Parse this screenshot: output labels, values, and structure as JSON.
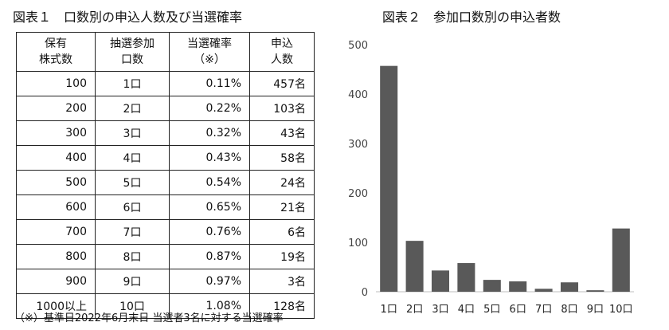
{
  "left_title": "図表１　口数別の申込人数及び当選確率",
  "table": {
    "headers": [
      [
        "保有",
        "株式数"
      ],
      [
        "抽選参加",
        "口数"
      ],
      [
        "当選確率",
        "（※）"
      ],
      [
        "申込",
        "人数"
      ]
    ],
    "rows": [
      [
        "100",
        "1口",
        "0.11%",
        "457名"
      ],
      [
        "200",
        "2口",
        "0.22%",
        "103名"
      ],
      [
        "300",
        "3口",
        "0.32%",
        "43名"
      ],
      [
        "400",
        "4口",
        "0.43%",
        "58名"
      ],
      [
        "500",
        "5口",
        "0.54%",
        "24名"
      ],
      [
        "600",
        "6口",
        "0.65%",
        "21名"
      ],
      [
        "700",
        "7口",
        "0.76%",
        "6名"
      ],
      [
        "800",
        "8口",
        "0.87%",
        "19名"
      ],
      [
        "900",
        "9口",
        "0.97%",
        "3名"
      ],
      [
        "1000以上",
        "10口",
        "1.08%",
        "128名"
      ]
    ]
  },
  "footnote": "（※）基準日2022年6月末日 当選者3名に対する当選確率",
  "chart_data": {
    "type": "bar",
    "title": "図表２　参加口数別の申込者数",
    "xlabel": "",
    "ylabel": "",
    "categories": [
      "1口",
      "2口",
      "3口",
      "4口",
      "5口",
      "6口",
      "7口",
      "8口",
      "9口",
      "10口"
    ],
    "values": [
      457,
      103,
      43,
      58,
      24,
      21,
      6,
      19,
      3,
      128
    ],
    "ylim": [
      0,
      500
    ],
    "yticks": [
      0,
      100,
      200,
      300,
      400,
      500
    ],
    "grid": false,
    "legend": "none",
    "bar_color": "#595959"
  }
}
